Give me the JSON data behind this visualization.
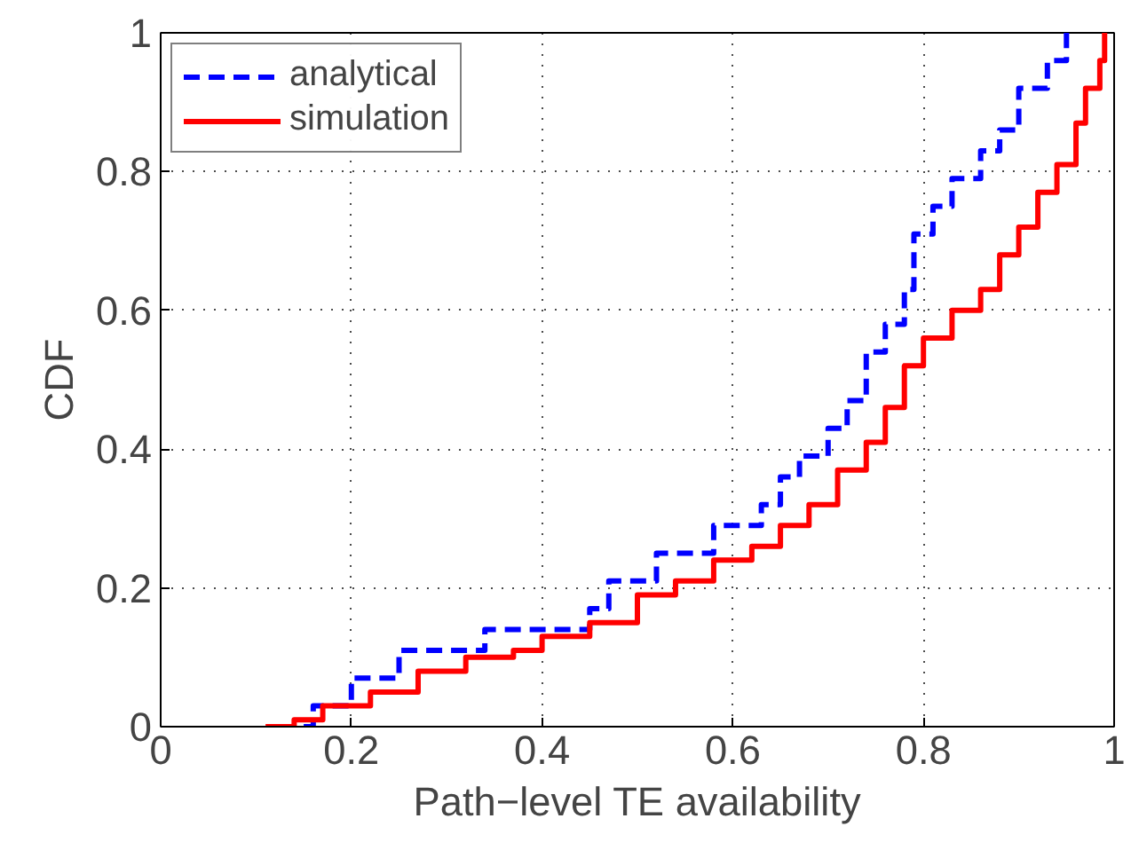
{
  "chart_data": {
    "type": "step",
    "xlabel": "Path−level TE availability",
    "ylabel": "CDF",
    "xlim": [
      0,
      1
    ],
    "ylim": [
      0,
      1
    ],
    "xticks": [
      0,
      0.2,
      0.4,
      0.6,
      0.8,
      1
    ],
    "yticks": [
      0,
      0.2,
      0.4,
      0.6,
      0.8,
      1
    ],
    "grid": true,
    "legend": "top left",
    "series": [
      {
        "name": "analytical",
        "color": "#0000ff",
        "line_style": "dashed",
        "x": [
          0.15,
          0.16,
          0.2,
          0.25,
          0.33,
          0.34,
          0.44,
          0.45,
          0.47,
          0.52,
          0.57,
          0.58,
          0.63,
          0.65,
          0.67,
          0.7,
          0.72,
          0.74,
          0.76,
          0.78,
          0.79,
          0.81,
          0.83,
          0.86,
          0.88,
          0.9,
          0.93,
          0.95
        ],
        "values": [
          0,
          0.03,
          0.07,
          0.11,
          0.11,
          0.14,
          0.14,
          0.17,
          0.21,
          0.25,
          0.25,
          0.29,
          0.32,
          0.36,
          0.39,
          0.43,
          0.47,
          0.54,
          0.58,
          0.63,
          0.71,
          0.75,
          0.79,
          0.83,
          0.86,
          0.92,
          0.96,
          1.0
        ]
      },
      {
        "name": "simulation",
        "color": "#ff0000",
        "line_style": "solid",
        "x": [
          0.11,
          0.14,
          0.17,
          0.22,
          0.27,
          0.32,
          0.37,
          0.4,
          0.45,
          0.5,
          0.54,
          0.58,
          0.62,
          0.65,
          0.68,
          0.71,
          0.74,
          0.76,
          0.78,
          0.8,
          0.83,
          0.86,
          0.88,
          0.9,
          0.92,
          0.94,
          0.96,
          0.97,
          0.985,
          0.99
        ],
        "values": [
          0,
          0.01,
          0.03,
          0.05,
          0.08,
          0.1,
          0.11,
          0.13,
          0.15,
          0.19,
          0.21,
          0.24,
          0.26,
          0.29,
          0.32,
          0.37,
          0.41,
          0.46,
          0.52,
          0.56,
          0.6,
          0.63,
          0.68,
          0.72,
          0.77,
          0.81,
          0.87,
          0.92,
          0.96,
          1.0
        ]
      }
    ]
  }
}
